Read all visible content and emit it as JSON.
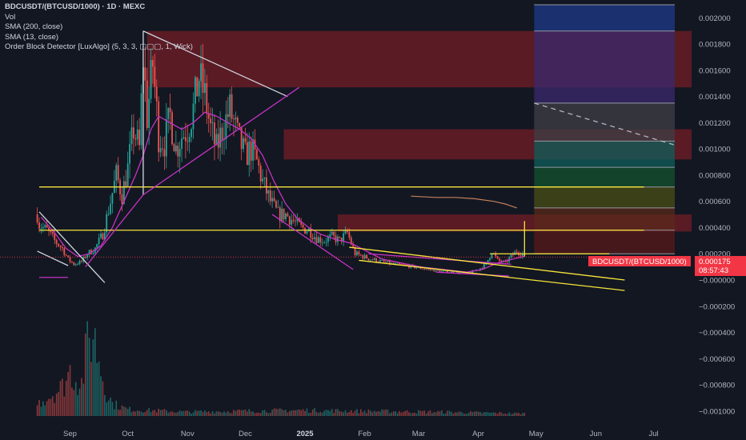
{
  "legend": {
    "symbol": "BDCUSDT/(BTCUSD/1000) · 1D · MEXC",
    "vol": "Vol",
    "sma200": "SMA (200, close)",
    "sma13": "SMA (13, close)",
    "order_block": "Order Block Detector [LuxAlgo] (5, 3, 3, ▢▢▢, 1, Wick)"
  },
  "price_tag": {
    "label": "BDCUSDT/(BTCUSD/1000)",
    "value": "0.000175",
    "countdown": "08:57:43"
  },
  "colors": {
    "background": "#131722",
    "up": "#26a69a",
    "down": "#ef5350",
    "sma13": "#c433c4",
    "sma200": "#c4805a",
    "trendline_white": "#d1d4dc",
    "trendline_yellow": "#f7e53b",
    "trendline_magenta": "#c433c4",
    "order_block_red": "#b2222a",
    "price_tag": "#f23645"
  },
  "chart_data": {
    "type": "candlestick",
    "ylim": [
      -0.00105,
      0.0021
    ],
    "y_ticks": [
      "0.002000",
      "0.001800",
      "0.001600",
      "0.001400",
      "0.001200",
      "0.001000",
      "0.000800",
      "0.000600",
      "0.000400",
      "0.000200",
      "−0.000000",
      "−0.000200",
      "−0.000400",
      "−0.000600",
      "−0.000800",
      "−0.001000"
    ],
    "x_ticks": [
      {
        "label": "Sep",
        "day": 0,
        "bold": false
      },
      {
        "label": "Oct",
        "day": 30,
        "bold": false
      },
      {
        "label": "Nov",
        "day": 61,
        "bold": false
      },
      {
        "label": "Dec",
        "day": 91,
        "bold": false
      },
      {
        "label": "2025",
        "day": 122,
        "bold": true
      },
      {
        "label": "Feb",
        "day": 153,
        "bold": false
      },
      {
        "label": "Mar",
        "day": 181,
        "bold": false
      },
      {
        "label": "Apr",
        "day": 212,
        "bold": false
      },
      {
        "label": "May",
        "day": 242,
        "bold": false
      },
      {
        "label": "Jun",
        "day": 273,
        "bold": false
      },
      {
        "label": "Jul",
        "day": 303,
        "bold": false
      }
    ],
    "close_path": [
      [
        -17,
        0.0005
      ],
      [
        -16,
        0.00042
      ],
      [
        -12,
        0.00038
      ],
      [
        -8,
        0.0003
      ],
      [
        -4,
        0.00024
      ],
      [
        -1,
        0.00016
      ],
      [
        2,
        0.00012
      ],
      [
        6,
        0.00014
      ],
      [
        9,
        0.0002
      ],
      [
        13,
        0.00024
      ],
      [
        17,
        0.00035
      ],
      [
        21,
        0.0006
      ],
      [
        24,
        0.0008
      ],
      [
        27,
        0.00065
      ],
      [
        30,
        0.00085
      ],
      [
        33,
        0.00115
      ],
      [
        36,
        0.001
      ],
      [
        38,
        0.0017
      ],
      [
        40,
        0.00125
      ],
      [
        43,
        0.00165
      ],
      [
        46,
        0.0011
      ],
      [
        49,
        0.00105
      ],
      [
        52,
        0.00125
      ],
      [
        55,
        0.001
      ],
      [
        58,
        0.0011
      ],
      [
        61,
        0.00115
      ],
      [
        64,
        0.0013
      ],
      [
        67,
        0.00155
      ],
      [
        70,
        0.0014
      ],
      [
        73,
        0.00115
      ],
      [
        76,
        0.001
      ],
      [
        79,
        0.00115
      ],
      [
        83,
        0.0013
      ],
      [
        87,
        0.0011
      ],
      [
        91,
        0.00095
      ],
      [
        94,
        0.001
      ],
      [
        97,
        0.0009
      ],
      [
        100,
        0.00075
      ],
      [
        104,
        0.0006
      ],
      [
        108,
        0.0005
      ],
      [
        112,
        0.0005
      ],
      [
        116,
        0.00045
      ],
      [
        120,
        0.0004
      ],
      [
        124,
        0.00038
      ],
      [
        128,
        0.00032
      ],
      [
        132,
        0.0003
      ],
      [
        136,
        0.00033
      ],
      [
        140,
        0.0003
      ],
      [
        144,
        0.00036
      ],
      [
        148,
        0.0002
      ],
      [
        152,
        0.00018
      ],
      [
        156,
        0.00016
      ],
      [
        162,
        0.00014
      ],
      [
        168,
        0.00012
      ],
      [
        175,
        0.00011
      ],
      [
        182,
        9e-05
      ],
      [
        190,
        7e-05
      ],
      [
        198,
        6e-05
      ],
      [
        206,
        5e-05
      ],
      [
        212,
        8e-05
      ],
      [
        216,
        0.00012
      ],
      [
        219,
        0.00022
      ],
      [
        222,
        0.00015
      ],
      [
        226,
        0.00013
      ],
      [
        229,
        0.00018
      ],
      [
        232,
        0.00022
      ],
      [
        235,
        0.0002
      ],
      [
        236,
        0.000175
      ]
    ],
    "sma13_path": [
      [
        -15,
        0.00048
      ],
      [
        -8,
        0.00036
      ],
      [
        -2,
        0.00024
      ],
      [
        4,
        0.00018
      ],
      [
        10,
        0.0002
      ],
      [
        16,
        0.00026
      ],
      [
        22,
        0.0004
      ],
      [
        28,
        0.0006
      ],
      [
        34,
        0.0008
      ],
      [
        38,
        0.00095
      ],
      [
        42,
        0.00115
      ],
      [
        46,
        0.00125
      ],
      [
        52,
        0.0012
      ],
      [
        58,
        0.00115
      ],
      [
        64,
        0.0012
      ],
      [
        70,
        0.00128
      ],
      [
        76,
        0.00125
      ],
      [
        82,
        0.0012
      ],
      [
        88,
        0.00115
      ],
      [
        94,
        0.00108
      ],
      [
        100,
        0.00095
      ],
      [
        106,
        0.00075
      ],
      [
        112,
        0.00058
      ],
      [
        118,
        0.00047
      ],
      [
        124,
        0.0004
      ],
      [
        130,
        0.00035
      ],
      [
        138,
        0.00031
      ],
      [
        146,
        0.00028
      ],
      [
        154,
        0.00022
      ],
      [
        162,
        0.00016
      ],
      [
        172,
        0.00013
      ],
      [
        182,
        0.0001
      ],
      [
        194,
        8e-05
      ],
      [
        206,
        6e-05
      ],
      [
        214,
        8e-05
      ],
      [
        222,
        0.00013
      ],
      [
        230,
        0.00016
      ],
      [
        236,
        0.00018
      ]
    ],
    "sma200_path": [
      [
        177,
        0.00064
      ],
      [
        190,
        0.00063
      ],
      [
        200,
        0.00063
      ],
      [
        210,
        0.00062
      ],
      [
        220,
        0.0006
      ],
      [
        226,
        0.00058
      ],
      [
        232,
        0.00055
      ]
    ],
    "volume_path": [
      [
        -17,
        0.15
      ],
      [
        -10,
        0.25
      ],
      [
        -4,
        0.35
      ],
      [
        0,
        0.55
      ],
      [
        3,
        0.45
      ],
      [
        6,
        0.4
      ],
      [
        9,
        0.85
      ],
      [
        12,
        1.0
      ],
      [
        15,
        0.7
      ],
      [
        18,
        0.35
      ],
      [
        22,
        0.15
      ],
      [
        30,
        0.08
      ],
      [
        60,
        0.05
      ],
      [
        90,
        0.06
      ],
      [
        120,
        0.07
      ],
      [
        150,
        0.06
      ],
      [
        190,
        0.05
      ],
      [
        236,
        0.03
      ]
    ],
    "horizontal_levels": [
      {
        "price": 0.00071,
        "from_day": -16,
        "to_day": 298,
        "color": "yellow"
      },
      {
        "price": 0.00038,
        "from_day": -16,
        "to_day": 298,
        "color": "yellow"
      },
      {
        "price": 0.0002,
        "from_day": 218,
        "to_day": 280,
        "color": "yellow"
      }
    ],
    "trendlines": [
      {
        "from": [
          -16,
          0.00052
        ],
        "to": [
          18,
          -2e-05
        ],
        "color": "white"
      },
      {
        "from": [
          -17,
          0.00022
        ],
        "to": [
          -1,
          0.00011
        ],
        "color": "white"
      },
      {
        "from": [
          38,
          0.0019
        ],
        "to": [
          113,
          0.0014
        ],
        "color": "white"
      },
      {
        "from": [
          38,
          0.0019
        ],
        "to": [
          38,
          0.00065
        ],
        "color": "white"
      },
      {
        "from": [
          8,
          0.0001
        ],
        "to": [
          38,
          0.00065
        ],
        "color": "magenta"
      },
      {
        "from": [
          38,
          0.00065
        ],
        "to": [
          119,
          0.00147
        ],
        "color": "magenta"
      },
      {
        "from": [
          105,
          0.0005
        ],
        "to": [
          147,
          8e-05
        ],
        "color": "magenta"
      },
      {
        "from": [
          -16,
          2e-05
        ],
        "to": [
          -1,
          2e-05
        ],
        "color": "magenta"
      },
      {
        "from": [
          155,
          0.0002
        ],
        "to": [
          229,
          0.00012
        ],
        "color": "magenta"
      },
      {
        "from": [
          190,
          6e-05
        ],
        "to": [
          228,
          3e-05
        ],
        "color": "magenta"
      },
      {
        "from": [
          145,
          0.00025
        ],
        "to": [
          288,
          0.0
        ],
        "color": "yellow"
      },
      {
        "from": [
          150,
          0.00015
        ],
        "to": [
          288,
          -8e-05
        ],
        "color": "yellow"
      },
      {
        "from": [
          236,
          0.00045
        ],
        "to": [
          236,
          0.00018
        ],
        "color": "yellow"
      },
      {
        "from": [
          241,
          0.00135
        ],
        "to": [
          314,
          0.00103
        ],
        "color": "white-dashed"
      }
    ],
    "order_blocks": [
      {
        "top": 0.0019,
        "bottom": 0.00147,
        "from_day": 40
      },
      {
        "top": 0.00115,
        "bottom": 0.00092,
        "from_day": 111
      },
      {
        "top": 0.0005,
        "bottom": 0.00037,
        "from_day": 139
      }
    ],
    "fib_levels": [
      {
        "price": 0.0021,
        "fill": "#1e3a8a"
      },
      {
        "price": 0.0019,
        "fill": "#3b2a6e"
      },
      {
        "price": 0.00135,
        "fill": "#3f3f46"
      },
      {
        "price": 0.00106,
        "fill": "#0f5f5a"
      },
      {
        "price": 0.00086,
        "fill": "#14532d"
      },
      {
        "price": 0.00071,
        "fill": "#4b4f16"
      },
      {
        "price": 0.00055,
        "fill": "#5a2a1a"
      },
      {
        "price": 0.00038,
        "fill": "#5a1a1a"
      },
      {
        "price": 0.0002,
        "fill": null
      }
    ],
    "fib_range": {
      "from_day": 241,
      "to_day": 314
    },
    "last_price": 0.000175,
    "day_range": [
      -17,
      318
    ]
  }
}
